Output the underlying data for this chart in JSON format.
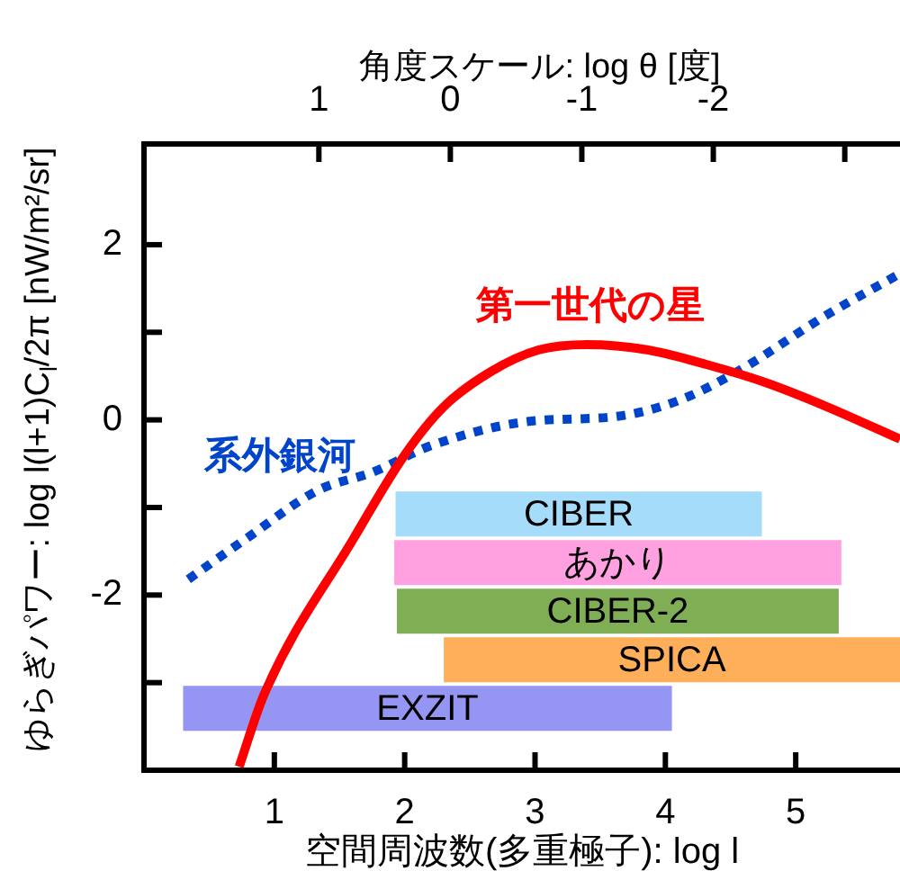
{
  "chart_data": {
    "type": "line",
    "xlabel": "空間周波数(多重極子): log l",
    "ylabel": "ゆらぎパワー: log l(l+1)C$_{l}$/2π [nW/m²/sr]",
    "x2label": "角度スケール: log θ [度]",
    "xlim": [
      0,
      5.8
    ],
    "xticks": [
      1,
      2,
      3,
      4,
      5
    ],
    "x2lim": [
      2.33,
      -3.42
    ],
    "x2ticks": [
      1,
      0,
      -1,
      -2,
      {
        "value": -3,
        "label": null
      }
    ],
    "ylim": [
      -4,
      3.15
    ],
    "yticks": [
      {
        "value": -3,
        "label": null
      },
      -2,
      {
        "value": -1,
        "label": null
      },
      0,
      {
        "value": 1,
        "label": null
      },
      2
    ],
    "series": [
      {
        "name": "第一世代の星",
        "color": "#ff0000",
        "line_style": "solid",
        "x": [
          0.73,
          0.92,
          1.61,
          2.0,
          2.3,
          2.66,
          3.03,
          3.4,
          3.86,
          4.32,
          4.78,
          5.24,
          5.8
        ],
        "values": [
          -3.96,
          -3.14,
          -1.35,
          -0.4,
          0.15,
          0.55,
          0.8,
          0.86,
          0.8,
          0.63,
          0.42,
          0.15,
          -0.22
        ]
      },
      {
        "name": "系外銀河",
        "color": "#0044cc",
        "line_style": "dotted",
        "x": [
          0.34,
          0.79,
          1.34,
          1.75,
          2.21,
          2.94,
          3.63,
          4.1,
          4.55,
          5.24,
          5.8
        ],
        "values": [
          -1.82,
          -1.35,
          -0.8,
          -0.6,
          -0.29,
          -0.02,
          0.04,
          0.22,
          0.55,
          1.2,
          1.67
        ]
      }
    ],
    "bands": [
      {
        "axis": "x",
        "from": 1.93,
        "to": 4.74,
        "label": "CIBER",
        "color": "#8fd3f7"
      },
      {
        "axis": "x",
        "from": 1.92,
        "to": 5.35,
        "label": "あかり",
        "color": "#ff88d8"
      },
      {
        "axis": "x",
        "from": 1.94,
        "to": 5.33,
        "label": "CIBER-2",
        "color": "#5f9a2a"
      },
      {
        "axis": "x",
        "from": 2.3,
        "to": 5.8,
        "label": "SPICA",
        "color": "#ff9a30"
      },
      {
        "axis": "x",
        "from": 0.3,
        "to": 4.05,
        "label": "EXZIT",
        "color": "#7b7bf0"
      }
    ],
    "legend": false,
    "grid": false,
    "marker": "none"
  }
}
